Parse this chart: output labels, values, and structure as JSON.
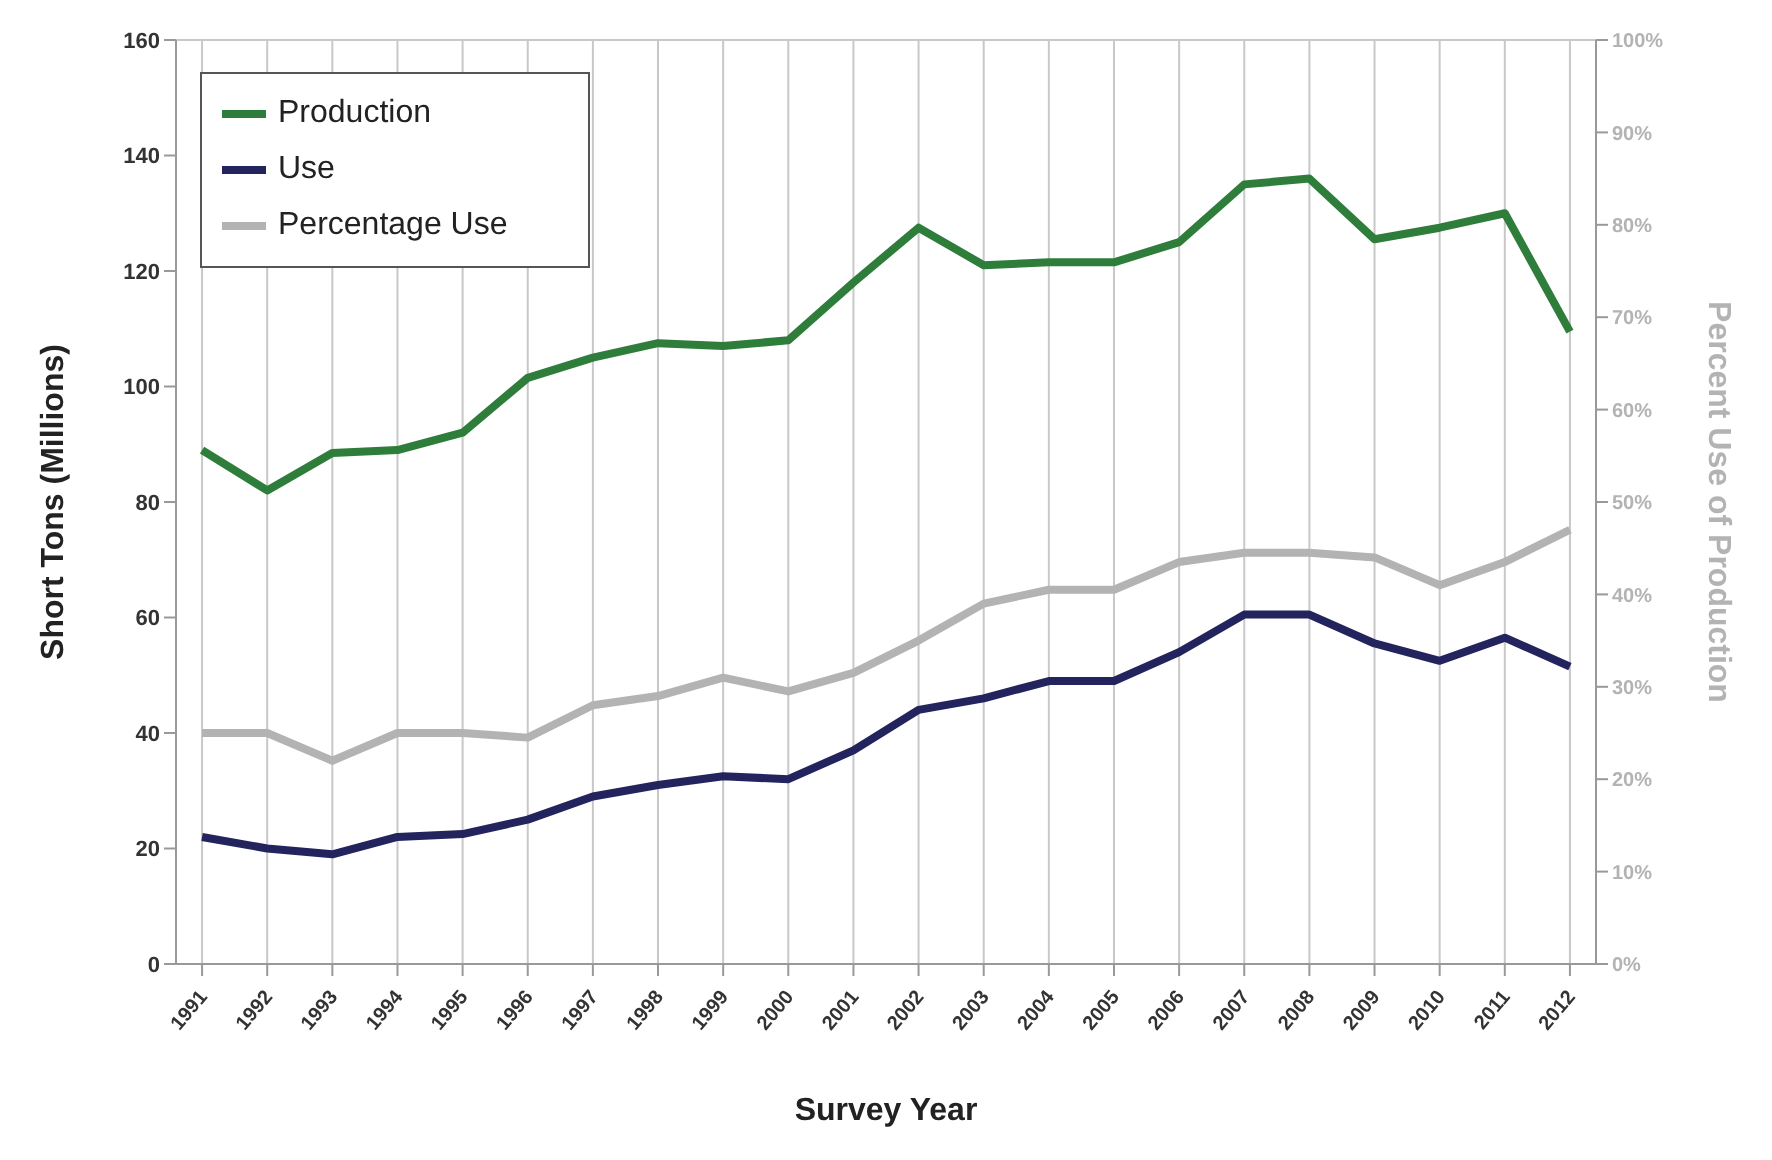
{
  "chart_data": {
    "type": "line",
    "xlabel": "Survey Year",
    "ylabel": "Short Tons (Millions)",
    "y2label": "Percent Use of Production",
    "categories": [
      "1991",
      "1992",
      "1993",
      "1994",
      "1995",
      "1996",
      "1997",
      "1998",
      "1999",
      "2000",
      "2001",
      "2002",
      "2003",
      "2004",
      "2005",
      "2006",
      "2007",
      "2008",
      "2009",
      "2010",
      "2011",
      "2012"
    ],
    "series": [
      {
        "name": "Production",
        "color": "#2e7d3a",
        "values": [
          89,
          82,
          88.5,
          89,
          92,
          101.5,
          105,
          107.5,
          107,
          108,
          118,
          127.5,
          121,
          121.5,
          121.5,
          125,
          135,
          136,
          125.5,
          127.5,
          130,
          109.5
        ]
      },
      {
        "name": "Use",
        "color": "#23235e",
        "values": [
          22,
          20,
          19,
          22,
          22.5,
          25,
          29,
          31,
          32.5,
          32,
          37,
          44,
          46,
          49,
          49,
          54,
          60.5,
          60.5,
          55.5,
          52.5,
          56.5,
          51.5
        ]
      },
      {
        "name": "Percentage Use",
        "color": "#b3b3b3",
        "axis": "y2",
        "values": [
          25,
          25,
          22,
          25,
          25,
          24.5,
          28,
          29,
          31,
          29.5,
          31.5,
          35,
          39,
          40.5,
          40.5,
          43.5,
          44.5,
          44.5,
          44,
          41,
          43.5,
          47
        ]
      }
    ],
    "ylim": [
      0,
      160
    ],
    "yticks": [
      0,
      20,
      40,
      60,
      80,
      100,
      120,
      140,
      160
    ],
    "y2lim": [
      0,
      100
    ],
    "y2ticks": [
      {
        "value": 0,
        "label": "0%"
      },
      {
        "value": 10,
        "label": "10%"
      },
      {
        "value": 20,
        "label": "20%"
      },
      {
        "value": 30,
        "label": "30%"
      },
      {
        "value": 40,
        "label": "40%"
      },
      {
        "value": 50,
        "label": "50%"
      },
      {
        "value": 60,
        "label": "60%"
      },
      {
        "value": 70,
        "label": "70%"
      },
      {
        "value": 80,
        "label": "80%"
      },
      {
        "value": 90,
        "label": "90%"
      },
      {
        "value": 100,
        "label": "100%"
      }
    ],
    "grid": true,
    "legend": "top left",
    "marker": "none",
    "line_style": "solid"
  }
}
